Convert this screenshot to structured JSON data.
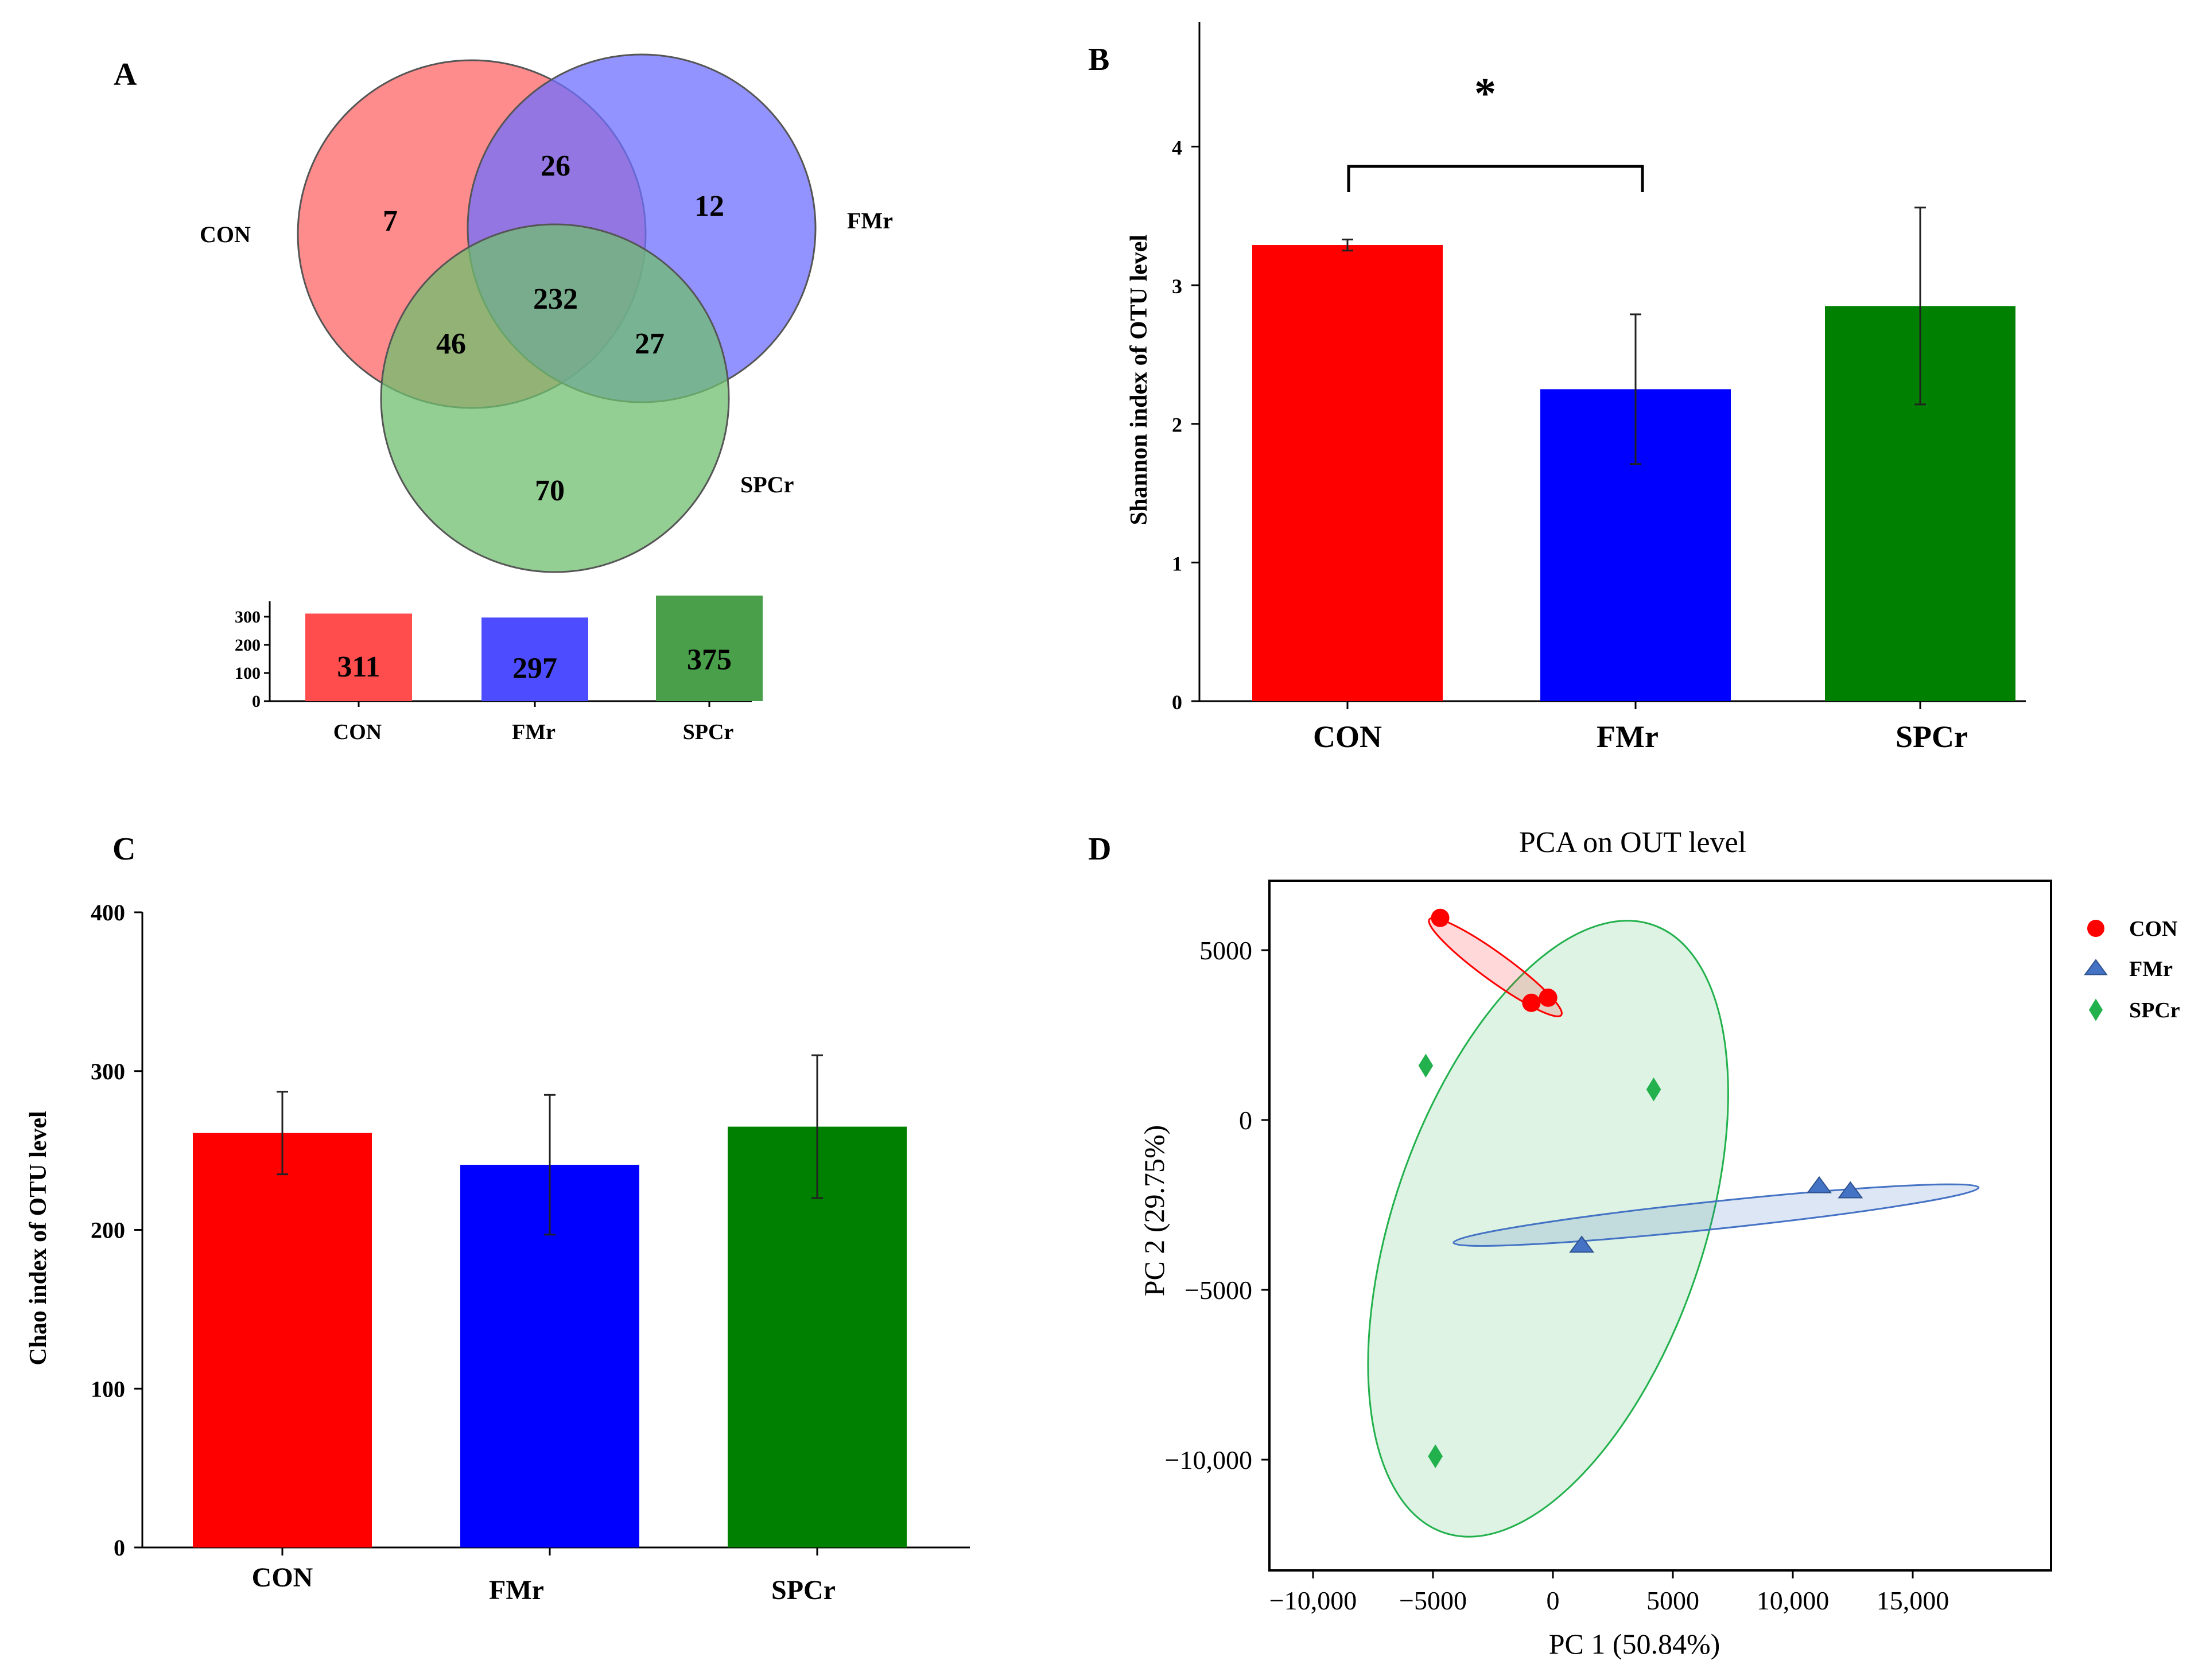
{
  "colors": {
    "con": "#ff0000",
    "fmr": "#0000ff",
    "spcr": "#008000",
    "venn_con": "#ff6f6f",
    "venn_fmr": "#6f6fff",
    "venn_spcr": "#6fbf6f",
    "bar_con": "#ff4d4d",
    "bar_fmr": "#4d4dff",
    "bar_spcr": "#4aa04a",
    "pca_con": "#ff0000",
    "pca_fmr": "#4472c4",
    "pca_spcr": "#22b14c",
    "star": "#ff0000"
  },
  "chart_data": [
    {
      "panel": "A",
      "type": "venn",
      "sets": [
        "CON",
        "FMr",
        "SPCr"
      ],
      "regions": {
        "con_only": 7,
        "fmr_only": 12,
        "spcr_only": 70,
        "con_fmr": 26,
        "con_spcr": 46,
        "fmr_spcr": 27,
        "all": 232
      },
      "totals_bar": {
        "type": "bar",
        "categories": [
          "CON",
          "FMr",
          "SPCr"
        ],
        "values": [
          311,
          297,
          375
        ],
        "ylim": [
          0,
          375
        ],
        "yticks": [
          "0",
          "100",
          "200",
          "300"
        ]
      }
    },
    {
      "panel": "B",
      "type": "bar",
      "categories": [
        "CON",
        "FMr",
        "SPCr"
      ],
      "values": [
        3.29,
        2.25,
        2.85
      ],
      "errors": [
        0.04,
        0.54,
        0.71
      ],
      "ylabel": "Shannon index of OTU level",
      "ylim": [
        0,
        4.9
      ],
      "yticks": [
        "0",
        "1",
        "2",
        "3",
        "4"
      ],
      "significance": {
        "pair": [
          "CON",
          "FMr"
        ],
        "label": "*"
      }
    },
    {
      "panel": "C",
      "type": "bar",
      "categories": [
        "CON",
        "FMr",
        "SPCr"
      ],
      "values": [
        261,
        241,
        265
      ],
      "errors": [
        26,
        44,
        45
      ],
      "ylabel": "Chao index of OTU level",
      "ylim": [
        0,
        400
      ],
      "yticks": [
        "0",
        "100",
        "200",
        "300",
        "400"
      ]
    },
    {
      "panel": "D",
      "type": "scatter",
      "title": "PCA on OUT level",
      "xlabel": "PC 1 (50.84%)",
      "ylabel": "PC 2 (29.75%)",
      "xlim": [
        -12000,
        20000
      ],
      "ylim": [
        -14000,
        7500
      ],
      "xticks": [
        "−10,000",
        "−5000",
        "0",
        "5000",
        "10,000",
        "15,000"
      ],
      "yticks": [
        "5000",
        "0",
        "−5000",
        "−10,000"
      ],
      "legend_position": "right",
      "series": [
        {
          "name": "CON",
          "marker": "circle",
          "x": [
            -4700,
            -900,
            -200
          ],
          "y": [
            5950,
            3450,
            3600
          ]
        },
        {
          "name": "FMr",
          "marker": "triangle",
          "x": [
            1200,
            11100,
            12400
          ],
          "y": [
            -3700,
            -1950,
            -2100
          ]
        },
        {
          "name": "SPCr",
          "marker": "diamond",
          "x": [
            -5300,
            4200,
            -4900
          ],
          "y": [
            1600,
            900,
            -9900
          ]
        }
      ]
    }
  ],
  "panel_labels": [
    "A",
    "B",
    "C",
    "D"
  ]
}
